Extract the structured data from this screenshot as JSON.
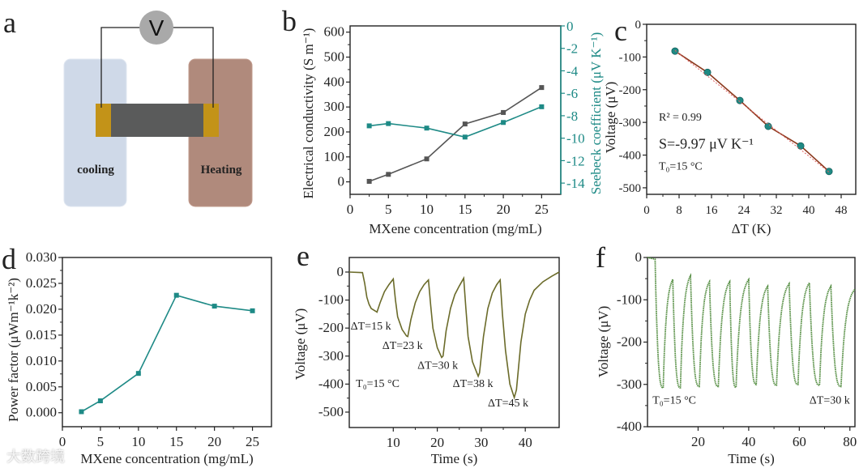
{
  "panel_labels": {
    "a": "a",
    "b": "b",
    "c": "c",
    "d": "d",
    "e": "e",
    "f": "f"
  },
  "diagram": {
    "voltmeter": "V",
    "cold_side": "cooling",
    "hot_side": "Heating",
    "colors": {
      "cold": "#cfd9e8",
      "hot": "#b08a7c",
      "electrode": "#c39318",
      "film": "#5a5b5b",
      "meter": "#a9a9a9"
    }
  },
  "watermark": "大数跨境",
  "chart_data": [
    {
      "id": "b",
      "type": "line",
      "xlabel": "MXene concentration (mg/mL)",
      "ylabel": "Electrical conductivity (S m⁻¹)",
      "y2label": "Seebeck coefficient (μV K⁻¹)",
      "xlim": [
        0,
        27.5
      ],
      "ylim": [
        -50,
        625
      ],
      "y2lim": [
        -15,
        0
      ],
      "xticks": [
        0,
        5,
        10,
        15,
        20,
        25
      ],
      "xticklabels": [
        "0",
        "5",
        "10",
        "15",
        "20",
        "25"
      ],
      "yticks": [
        0,
        100,
        200,
        300,
        400,
        500,
        600
      ],
      "yticklabels": [
        "0",
        "100",
        "200",
        "300",
        "400",
        "500",
        "600"
      ],
      "y2ticks": [
        0,
        -2,
        -4,
        -6,
        -8,
        -10,
        -12,
        -14
      ],
      "y2ticklabels": [
        "0",
        "-2",
        "-4",
        "-6",
        "-8",
        "-10",
        "-12",
        "-14"
      ],
      "series": [
        {
          "name": "Electrical conductivity",
          "axis": "left",
          "color": "#555555",
          "marker": "square",
          "x": [
            2.5,
            5,
            10,
            15,
            20,
            25
          ],
          "y": [
            2,
            30,
            92,
            232,
            278,
            378
          ]
        },
        {
          "name": "Seebeck coefficient",
          "axis": "right",
          "color": "#1e8a86",
          "marker": "square",
          "x": [
            2.5,
            5,
            10,
            15,
            20,
            25
          ],
          "y": [
            -8.9,
            -8.7,
            -9.1,
            -9.9,
            -8.6,
            -7.2
          ]
        }
      ],
      "annotations": []
    },
    {
      "id": "c",
      "type": "scatter",
      "xlabel": "ΔT (K)",
      "ylabel": "Voltage (μV)",
      "xlim": [
        0,
        51.6
      ],
      "ylim": [
        -520,
        0
      ],
      "xticks": [
        0,
        8,
        16,
        24,
        32,
        40,
        48
      ],
      "xticklabels": [
        "0",
        "8",
        "16",
        "24",
        "32",
        "40",
        "48"
      ],
      "yticks": [
        0,
        -100,
        -200,
        -300,
        -400,
        -500
      ],
      "yticklabels": [
        "0",
        "-100",
        "-200",
        "-300",
        "-400",
        "-500"
      ],
      "series": [
        {
          "name": "Measured voltage",
          "axis": "left",
          "color": "#8b3a1e",
          "marker": "circle",
          "marker_color": "#1f8a84",
          "x": [
            7,
            15,
            23,
            30,
            38,
            45
          ],
          "y": [
            -82,
            -147,
            -233,
            -312,
            -372,
            -450
          ]
        },
        {
          "name": "Linear fit",
          "axis": "left",
          "color": "#e06060",
          "marker": "none",
          "dashed": true,
          "x": [
            7,
            45
          ],
          "y": [
            -80,
            -452
          ]
        }
      ],
      "annotations": [
        {
          "text": "R² = 0.99",
          "x": 3,
          "y": -295,
          "size": "small"
        },
        {
          "text": "S=-9.97 μV K⁻¹",
          "x": 3,
          "y": -380,
          "size": "large"
        },
        {
          "text": "T₀=15 °C",
          "x": 3,
          "y": -445,
          "size": "small"
        }
      ]
    },
    {
      "id": "d",
      "type": "line",
      "xlabel": "MXene concentration (mg/mL)",
      "ylabel": "Power factor (μWm⁻¹k⁻²)",
      "xlim": [
        0,
        27.5
      ],
      "ylim": [
        -0.0027,
        0.03
      ],
      "xticks": [
        0,
        5,
        10,
        15,
        20,
        25
      ],
      "xticklabels": [
        "0",
        "5",
        "10",
        "15",
        "20",
        "25"
      ],
      "yticks": [
        0,
        0.005,
        0.01,
        0.015,
        0.02,
        0.025,
        0.03
      ],
      "yticklabels": [
        "0.000",
        "0.005",
        "0.010",
        "0.015",
        "0.020",
        "0.025",
        "0.030"
      ],
      "series": [
        {
          "name": "Power factor",
          "axis": "left",
          "color": "#1e8a86",
          "marker": "square",
          "x": [
            2.5,
            5,
            10,
            15,
            20,
            25
          ],
          "y": [
            0.0002,
            0.0023,
            0.0076,
            0.0227,
            0.0206,
            0.0197
          ]
        }
      ],
      "annotations": []
    },
    {
      "id": "e",
      "type": "line",
      "xlabel": "Time (s)",
      "ylabel": "Voltage (μV)",
      "xlim": [
        0,
        47.7
      ],
      "ylim": [
        -555,
        52
      ],
      "xticks": [
        10,
        20,
        30,
        40
      ],
      "xticklabels": [
        "10",
        "20",
        "30",
        "40"
      ],
      "yticks": [
        0,
        -100,
        -200,
        -300,
        -400,
        -500
      ],
      "yticklabels": [
        "0",
        "-100",
        "-200",
        "-300",
        "-400",
        "-500"
      ],
      "series": [
        {
          "name": "Voltage response",
          "axis": "left",
          "color": "#6b6b2a",
          "marker": "none",
          "points": [
            [
              0,
              0
            ],
            [
              3,
              -2
            ],
            [
              3.5,
              -40
            ],
            [
              4,
              -90
            ],
            [
              4.5,
              -115
            ],
            [
              5,
              -130
            ],
            [
              6,
              -140
            ],
            [
              6.3,
              -143
            ],
            [
              7,
              -110
            ],
            [
              8,
              -70
            ],
            [
              9,
              -45
            ],
            [
              10,
              -25
            ],
            [
              10.5,
              -100
            ],
            [
              11,
              -160
            ],
            [
              12,
              -205
            ],
            [
              13,
              -228
            ],
            [
              13.3,
              -230
            ],
            [
              14,
              -170
            ],
            [
              15,
              -110
            ],
            [
              16,
              -70
            ],
            [
              17,
              -45
            ],
            [
              18,
              -28
            ],
            [
              18.5,
              -120
            ],
            [
              19,
              -200
            ],
            [
              20,
              -270
            ],
            [
              21,
              -305
            ],
            [
              21.3,
              -300
            ],
            [
              22,
              -210
            ],
            [
              23,
              -130
            ],
            [
              24,
              -80
            ],
            [
              25,
              -50
            ],
            [
              26,
              -22
            ],
            [
              26.5,
              -130
            ],
            [
              27,
              -230
            ],
            [
              28,
              -320
            ],
            [
              29.3,
              -372
            ],
            [
              29.6,
              -360
            ],
            [
              30.5,
              -230
            ],
            [
              31.5,
              -130
            ],
            [
              32.5,
              -75
            ],
            [
              33.5,
              -45
            ],
            [
              34.3,
              -28
            ],
            [
              34.8,
              -150
            ],
            [
              35.5,
              -280
            ],
            [
              36.5,
              -400
            ],
            [
              37.5,
              -448
            ],
            [
              38,
              -420
            ],
            [
              39,
              -250
            ],
            [
              40,
              -150
            ],
            [
              41,
              -100
            ],
            [
              42,
              -65
            ],
            [
              44,
              -35
            ],
            [
              46,
              -15
            ],
            [
              47.7,
              0
            ]
          ]
        }
      ],
      "annotations": [
        {
          "text": "ΔT=15 k",
          "x": 0.3,
          "y": -205,
          "size": "small"
        },
        {
          "text": "ΔT=23 k",
          "x": 7.5,
          "y": -275,
          "size": "small"
        },
        {
          "text": "ΔT=30 k",
          "x": 15.5,
          "y": -345,
          "size": "small"
        },
        {
          "text": "ΔT=38 k",
          "x": 23.5,
          "y": -410,
          "size": "small"
        },
        {
          "text": "ΔT=45 k",
          "x": 31.5,
          "y": -480,
          "size": "small"
        },
        {
          "text": "T₀=15 °C",
          "x": 1.5,
          "y": -410,
          "size": "small"
        }
      ]
    },
    {
      "id": "f",
      "type": "line",
      "xlabel": "Time (s)",
      "ylabel": "Voltage (μV)",
      "xlim": [
        0,
        82
      ],
      "ylim": [
        -400,
        0
      ],
      "xticks": [
        20,
        40,
        60,
        80
      ],
      "xticklabels": [
        "20",
        "40",
        "60",
        "80"
      ],
      "yticks": [
        0,
        -100,
        -200,
        -300,
        -400
      ],
      "yticklabels": [
        "0",
        "-100",
        "-200",
        "-300",
        "-400"
      ],
      "series": [
        {
          "name": "Cyclic voltage response",
          "axis": "left",
          "color": "#4f8a3c",
          "marker": "none",
          "dotted": true,
          "start": [
            [
              0,
              0
            ],
            [
              3,
              -4
            ]
          ],
          "troughs": [
            [
              6.2,
              -308
            ],
            [
              13,
              -308
            ],
            [
              20.5,
              -305
            ],
            [
              28,
              -305
            ],
            [
              35,
              -307
            ],
            [
              43,
              -300
            ],
            [
              51,
              -302
            ],
            [
              59.5,
              -300
            ],
            [
              68,
              -302
            ],
            [
              76.5,
              -305
            ]
          ],
          "peaks": [
            [
              10,
              -52
            ],
            [
              17,
              -43
            ],
            [
              24.5,
              -57
            ],
            [
              32.5,
              -57
            ],
            [
              40,
              -52
            ],
            [
              47.5,
              -68
            ],
            [
              56,
              -62
            ],
            [
              64,
              -60
            ],
            [
              72.5,
              -68
            ],
            [
              82,
              -75
            ]
          ]
        }
      ],
      "annotations": [
        {
          "text": "T₀=15 °C",
          "x": 2,
          "y": -345,
          "size": "small"
        },
        {
          "text": "ΔT=30 k",
          "x": 64,
          "y": -345,
          "size": "small"
        }
      ]
    }
  ]
}
